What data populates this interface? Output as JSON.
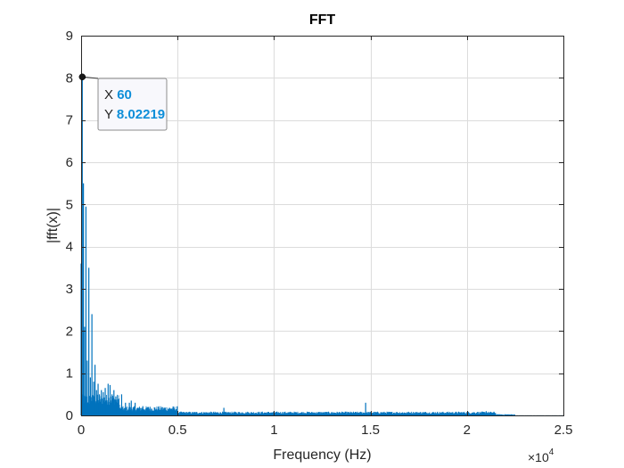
{
  "chart_data": {
    "type": "line",
    "title": "FFT",
    "xlabel": "Frequency (Hz)",
    "ylabel": "|fft(x)|",
    "x_exponent_base": "×10",
    "x_exponent_power": "4",
    "xlim": [
      0,
      25000
    ],
    "ylim": [
      0,
      9
    ],
    "xticks": [
      0,
      5000,
      10000,
      15000,
      20000,
      25000
    ],
    "xtick_labels": [
      "0",
      "0.5",
      "1",
      "1.5",
      "2",
      "2.5"
    ],
    "yticks": [
      0,
      1,
      2,
      3,
      4,
      5,
      6,
      7,
      8,
      9
    ],
    "ytick_labels": [
      "0",
      "1",
      "2",
      "3",
      "4",
      "5",
      "6",
      "7",
      "8",
      "9"
    ],
    "grid": true,
    "series": [
      {
        "color": "#0072bd",
        "peaks": [
          {
            "x": 0,
            "y": 3.6
          },
          {
            "x": 20,
            "y": 1.2
          },
          {
            "x": 60,
            "y": 8.02219
          },
          {
            "x": 120,
            "y": 5.5
          },
          {
            "x": 180,
            "y": 2.1
          },
          {
            "x": 250,
            "y": 4.95
          },
          {
            "x": 320,
            "y": 1.3
          },
          {
            "x": 400,
            "y": 3.5
          },
          {
            "x": 480,
            "y": 0.9
          },
          {
            "x": 560,
            "y": 2.4
          },
          {
            "x": 650,
            "y": 0.8
          },
          {
            "x": 720,
            "y": 1.2
          },
          {
            "x": 800,
            "y": 0.6
          },
          {
            "x": 880,
            "y": 0.75
          },
          {
            "x": 950,
            "y": 0.5
          },
          {
            "x": 1050,
            "y": 0.6
          },
          {
            "x": 1150,
            "y": 0.55
          },
          {
            "x": 1250,
            "y": 0.65
          },
          {
            "x": 1400,
            "y": 0.75
          },
          {
            "x": 1500,
            "y": 0.72
          },
          {
            "x": 1600,
            "y": 0.5
          },
          {
            "x": 1700,
            "y": 0.6
          },
          {
            "x": 1800,
            "y": 0.45
          },
          {
            "x": 1950,
            "y": 0.4
          },
          {
            "x": 2100,
            "y": 0.5
          },
          {
            "x": 2300,
            "y": 0.3
          },
          {
            "x": 2500,
            "y": 0.3
          },
          {
            "x": 2600,
            "y": 0.35
          },
          {
            "x": 2800,
            "y": 0.3
          },
          {
            "x": 3200,
            "y": 0.22
          },
          {
            "x": 3500,
            "y": 0.2
          },
          {
            "x": 4000,
            "y": 0.15
          },
          {
            "x": 7400,
            "y": 0.18
          },
          {
            "x": 14750,
            "y": 0.3
          },
          {
            "x": 21000,
            "y": 0.1
          }
        ]
      }
    ],
    "datatip": {
      "x_label": "X",
      "x_value": "60",
      "y_label": "Y",
      "y_value": "8.02219",
      "x": 60,
      "y": 8.02219
    }
  }
}
